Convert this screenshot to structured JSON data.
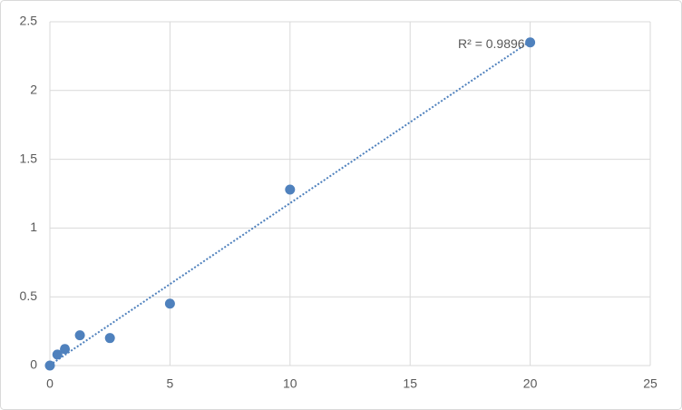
{
  "chart_data": {
    "type": "scatter",
    "x": [
      0,
      0.3125,
      0.625,
      1.25,
      2.5,
      5,
      10,
      20
    ],
    "series": [
      {
        "color": "#4f81bd",
        "values": [
          0,
          0.08,
          0.12,
          0.22,
          0.2,
          0.45,
          1.28,
          2.35
        ]
      }
    ],
    "trendline": {
      "type": "linear",
      "label": "R² = 0.9896",
      "color": "#4f81bd"
    },
    "xlim": [
      0,
      25
    ],
    "xticks": [
      0,
      5,
      10,
      15,
      20,
      25
    ],
    "ylim": [
      0,
      2.5
    ],
    "yticks": [
      0,
      0.5,
      1,
      1.5,
      2,
      2.5
    ],
    "grid": true
  }
}
